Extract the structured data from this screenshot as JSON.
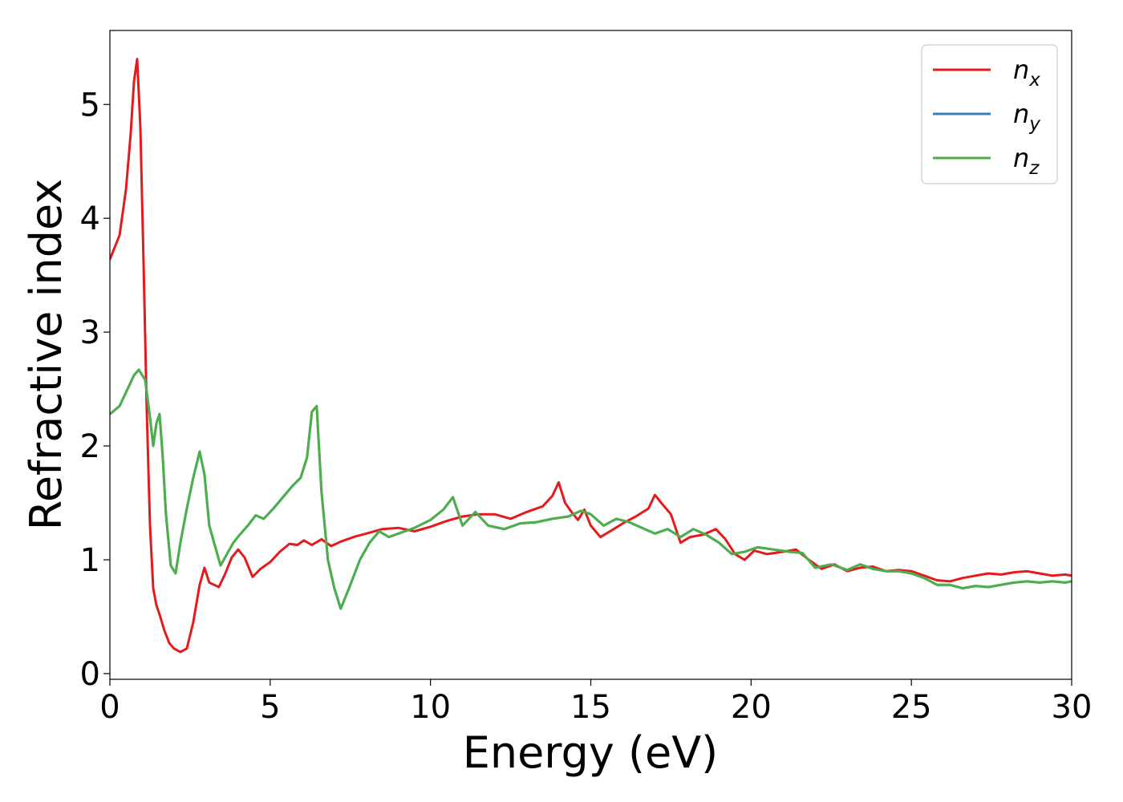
{
  "chart_data": {
    "type": "line",
    "title": "",
    "xlabel": "Energy (eV)",
    "ylabel": "Refractive index",
    "xlim": [
      0,
      30
    ],
    "ylim": [
      -0.05,
      5.65
    ],
    "xticks": [
      0,
      5,
      10,
      15,
      20,
      25,
      30
    ],
    "yticks": [
      0,
      1,
      2,
      3,
      4,
      5
    ],
    "grid": false,
    "legend_position": "top-right",
    "series": [
      {
        "name": "n",
        "subscript": "x",
        "color": "#e41a1c",
        "x": [
          0,
          0.3,
          0.5,
          0.65,
          0.75,
          0.85,
          0.95,
          1.05,
          1.15,
          1.25,
          1.35,
          1.45,
          1.55,
          1.7,
          1.85,
          2.0,
          2.2,
          2.4,
          2.6,
          2.8,
          2.95,
          3.1,
          3.25,
          3.4,
          3.6,
          3.8,
          4.0,
          4.2,
          4.45,
          4.7,
          5.0,
          5.3,
          5.6,
          5.85,
          6.05,
          6.3,
          6.6,
          6.9,
          7.2,
          7.6,
          8.0,
          8.5,
          9.0,
          9.5,
          10.0,
          10.5,
          11.0,
          11.5,
          12.0,
          12.5,
          13.0,
          13.5,
          13.8,
          14.0,
          14.2,
          14.4,
          14.6,
          14.8,
          15.0,
          15.3,
          15.6,
          16.0,
          16.4,
          16.8,
          17.0,
          17.2,
          17.5,
          17.8,
          18.1,
          18.5,
          18.9,
          19.2,
          19.5,
          19.8,
          20.1,
          20.5,
          21.0,
          21.4,
          21.8,
          22.2,
          22.6,
          23.0,
          23.4,
          23.8,
          24.2,
          24.6,
          25.0,
          25.4,
          25.8,
          26.2,
          26.6,
          27.0,
          27.4,
          27.8,
          28.2,
          28.6,
          29.0,
          29.4,
          29.8,
          30.0
        ],
        "y": [
          3.64,
          3.85,
          4.25,
          4.75,
          5.2,
          5.4,
          4.8,
          3.6,
          2.3,
          1.3,
          0.75,
          0.6,
          0.52,
          0.38,
          0.27,
          0.22,
          0.19,
          0.22,
          0.45,
          0.78,
          0.93,
          0.8,
          0.78,
          0.76,
          0.88,
          1.02,
          1.09,
          1.02,
          0.85,
          0.92,
          0.98,
          1.07,
          1.14,
          1.13,
          1.17,
          1.13,
          1.18,
          1.12,
          1.16,
          1.2,
          1.23,
          1.27,
          1.28,
          1.25,
          1.29,
          1.34,
          1.38,
          1.4,
          1.4,
          1.36,
          1.42,
          1.47,
          1.56,
          1.68,
          1.5,
          1.42,
          1.35,
          1.44,
          1.3,
          1.2,
          1.25,
          1.32,
          1.38,
          1.45,
          1.57,
          1.5,
          1.4,
          1.15,
          1.2,
          1.22,
          1.27,
          1.18,
          1.05,
          1.0,
          1.08,
          1.05,
          1.07,
          1.09,
          1.0,
          0.92,
          0.96,
          0.9,
          0.93,
          0.94,
          0.9,
          0.91,
          0.9,
          0.86,
          0.82,
          0.81,
          0.84,
          0.86,
          0.88,
          0.87,
          0.89,
          0.9,
          0.88,
          0.86,
          0.87,
          0.86
        ]
      },
      {
        "name": "n",
        "subscript": "y",
        "color": "#377eb8",
        "x": [
          0,
          0.3,
          0.55,
          0.75,
          0.9,
          1.1,
          1.25,
          1.35,
          1.45,
          1.55,
          1.65,
          1.75,
          1.9,
          2.05,
          2.2,
          2.4,
          2.6,
          2.8,
          2.95,
          3.1,
          3.3,
          3.45,
          3.65,
          3.85,
          4.05,
          4.3,
          4.55,
          4.8,
          5.1,
          5.4,
          5.7,
          5.95,
          6.15,
          6.3,
          6.45,
          6.6,
          6.8,
          7.0,
          7.2,
          7.5,
          7.8,
          8.1,
          8.4,
          8.7,
          9.0,
          9.5,
          10.0,
          10.4,
          10.7,
          11.0,
          11.4,
          11.8,
          12.3,
          12.8,
          13.3,
          13.8,
          14.3,
          14.7,
          15.0,
          15.4,
          15.8,
          16.2,
          16.6,
          17.0,
          17.4,
          17.8,
          18.2,
          18.6,
          19.0,
          19.4,
          19.8,
          20.2,
          20.7,
          21.2,
          21.6,
          22.0,
          22.5,
          23.0,
          23.4,
          23.8,
          24.2,
          24.6,
          25.0,
          25.4,
          25.8,
          26.2,
          26.6,
          27.0,
          27.4,
          27.8,
          28.2,
          28.6,
          29.0,
          29.4,
          29.8,
          30.0
        ],
        "y": [
          2.28,
          2.35,
          2.5,
          2.62,
          2.67,
          2.58,
          2.25,
          2.0,
          2.2,
          2.28,
          1.9,
          1.4,
          0.95,
          0.88,
          1.15,
          1.45,
          1.72,
          1.95,
          1.75,
          1.3,
          1.1,
          0.95,
          1.05,
          1.15,
          1.22,
          1.3,
          1.39,
          1.36,
          1.45,
          1.55,
          1.65,
          1.72,
          1.9,
          2.3,
          2.35,
          1.6,
          1.0,
          0.75,
          0.57,
          0.78,
          1.0,
          1.15,
          1.25,
          1.2,
          1.23,
          1.28,
          1.35,
          1.44,
          1.55,
          1.3,
          1.42,
          1.3,
          1.27,
          1.32,
          1.33,
          1.36,
          1.38,
          1.43,
          1.4,
          1.3,
          1.36,
          1.33,
          1.28,
          1.23,
          1.27,
          1.2,
          1.27,
          1.22,
          1.15,
          1.05,
          1.07,
          1.11,
          1.09,
          1.07,
          1.06,
          0.93,
          0.96,
          0.91,
          0.96,
          0.92,
          0.9,
          0.9,
          0.88,
          0.84,
          0.78,
          0.78,
          0.75,
          0.77,
          0.76,
          0.78,
          0.8,
          0.81,
          0.8,
          0.81,
          0.8,
          0.81
        ]
      },
      {
        "name": "n",
        "subscript": "z",
        "color": "#4daf4a",
        "x": [
          0,
          0.3,
          0.55,
          0.75,
          0.9,
          1.1,
          1.25,
          1.35,
          1.45,
          1.55,
          1.65,
          1.75,
          1.9,
          2.05,
          2.2,
          2.4,
          2.6,
          2.8,
          2.95,
          3.1,
          3.3,
          3.45,
          3.65,
          3.85,
          4.05,
          4.3,
          4.55,
          4.8,
          5.1,
          5.4,
          5.7,
          5.95,
          6.15,
          6.3,
          6.45,
          6.6,
          6.8,
          7.0,
          7.2,
          7.5,
          7.8,
          8.1,
          8.4,
          8.7,
          9.0,
          9.5,
          10.0,
          10.4,
          10.7,
          11.0,
          11.4,
          11.8,
          12.3,
          12.8,
          13.3,
          13.8,
          14.3,
          14.7,
          15.0,
          15.4,
          15.8,
          16.2,
          16.6,
          17.0,
          17.4,
          17.8,
          18.2,
          18.6,
          19.0,
          19.4,
          19.8,
          20.2,
          20.7,
          21.2,
          21.6,
          22.0,
          22.5,
          23.0,
          23.4,
          23.8,
          24.2,
          24.6,
          25.0,
          25.4,
          25.8,
          26.2,
          26.6,
          27.0,
          27.4,
          27.8,
          28.2,
          28.6,
          29.0,
          29.4,
          29.8,
          30.0
        ],
        "y": [
          2.28,
          2.35,
          2.5,
          2.62,
          2.67,
          2.58,
          2.25,
          2.0,
          2.2,
          2.28,
          1.9,
          1.4,
          0.95,
          0.88,
          1.15,
          1.45,
          1.72,
          1.95,
          1.75,
          1.3,
          1.1,
          0.95,
          1.05,
          1.15,
          1.22,
          1.3,
          1.39,
          1.36,
          1.45,
          1.55,
          1.65,
          1.72,
          1.9,
          2.3,
          2.35,
          1.6,
          1.0,
          0.75,
          0.57,
          0.78,
          1.0,
          1.15,
          1.25,
          1.2,
          1.23,
          1.28,
          1.35,
          1.44,
          1.55,
          1.3,
          1.42,
          1.3,
          1.27,
          1.32,
          1.33,
          1.36,
          1.38,
          1.43,
          1.4,
          1.3,
          1.36,
          1.33,
          1.28,
          1.23,
          1.27,
          1.2,
          1.27,
          1.22,
          1.15,
          1.05,
          1.07,
          1.11,
          1.09,
          1.07,
          1.06,
          0.93,
          0.96,
          0.91,
          0.96,
          0.92,
          0.9,
          0.9,
          0.88,
          0.84,
          0.78,
          0.78,
          0.75,
          0.77,
          0.76,
          0.78,
          0.8,
          0.81,
          0.8,
          0.81,
          0.8,
          0.81
        ]
      }
    ]
  }
}
